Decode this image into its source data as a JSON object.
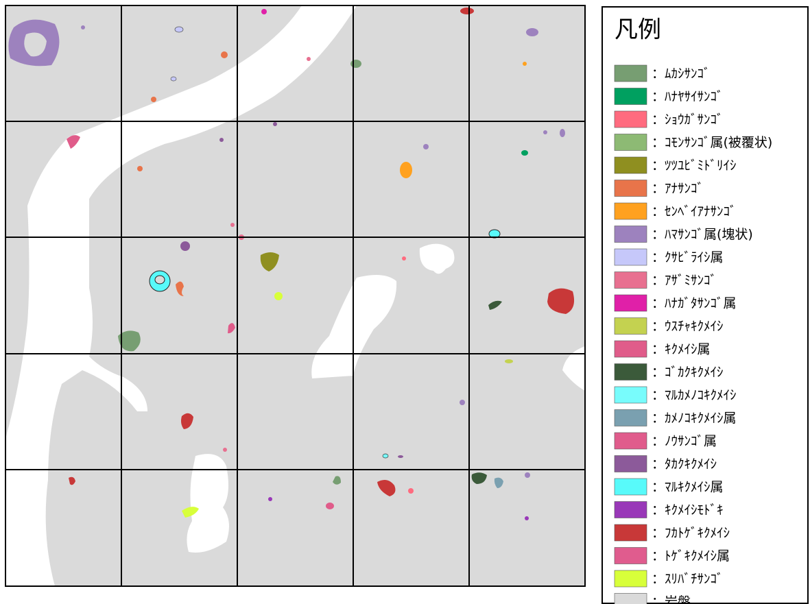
{
  "legend": {
    "title": "凡例",
    "items": [
      {
        "label": "：ﾑｶｼｻﾝｺﾞ",
        "color": "#779e72"
      },
      {
        "label": "：ﾊﾅﾔｻｲｻﾝｺﾞ",
        "color": "#00a060"
      },
      {
        "label": "：ｼｮｳｶﾞｻﾝｺﾞ",
        "color": "#ff6b7f"
      },
      {
        "label": "：ｺﾓﾝｻﾝｺﾞ属(被覆状)",
        "color": "#8dba74"
      },
      {
        "label": "：ﾂﾂﾕﾋﾞﾐﾄﾞﾘｲｼ",
        "color": "#8f8f20"
      },
      {
        "label": "：ｱﾅｻﾝｺﾞ",
        "color": "#e8744a"
      },
      {
        "label": "：ｾﾝﾍﾞｲｱﾅｻﾝｺﾞ",
        "color": "#ffa11f"
      },
      {
        "label": "：ﾊﾏｻﾝｺﾞ属(塊状)",
        "color": "#9d82be"
      },
      {
        "label": "：ｸｻﾋﾞﾗｲｼ属",
        "color": "#c6c8fa"
      },
      {
        "label": "：ｱｻﾞﾐｻﾝｺﾞ",
        "color": "#e87090"
      },
      {
        "label": "：ﾊﾅｶﾞﾀｻﾝｺﾞ属",
        "color": "#e020a8"
      },
      {
        "label": "：ｳｽﾁｬｷｸﾒｲｼ",
        "color": "#c4d250"
      },
      {
        "label": "：ｷｸﾒｲｼ属",
        "color": "#e05c8a"
      },
      {
        "label": "：ｺﾞｶｸｷｸﾒｲｼ",
        "color": "#3b5a3a"
      },
      {
        "label": "：ﾏﾙｶﾒﾉｺｷｸﾒｲｼ",
        "color": "#78fcfc"
      },
      {
        "label": "：ｶﾒﾉｺｷｸﾒｲｼ属",
        "color": "#7aa0b0"
      },
      {
        "label": "：ﾉｳｻﾝｺﾞ属",
        "color": "#e05c8c"
      },
      {
        "label": "：ﾀｶｸｷｸﾒｲｼ",
        "color": "#8c5a9a"
      },
      {
        "label": "：ﾏﾙｷｸﾒｲｼ属",
        "color": "#58fafa"
      },
      {
        "label": "：ｷｸﾒｲｼﾓﾄﾞｷ",
        "color": "#9938b8"
      },
      {
        "label": "：ﾌｶﾄｹﾞｷｸﾒｲｼ",
        "color": "#c83838"
      },
      {
        "label": "：ﾄｹﾞｷｸﾒｲｼ属",
        "color": "#e05c8e"
      },
      {
        "label": "：ｽﾘﾊﾞﾁｻﾝｺﾞ",
        "color": "#d8ff3a"
      },
      {
        "label": "：岩盤",
        "color": "#dadada"
      }
    ]
  }
}
